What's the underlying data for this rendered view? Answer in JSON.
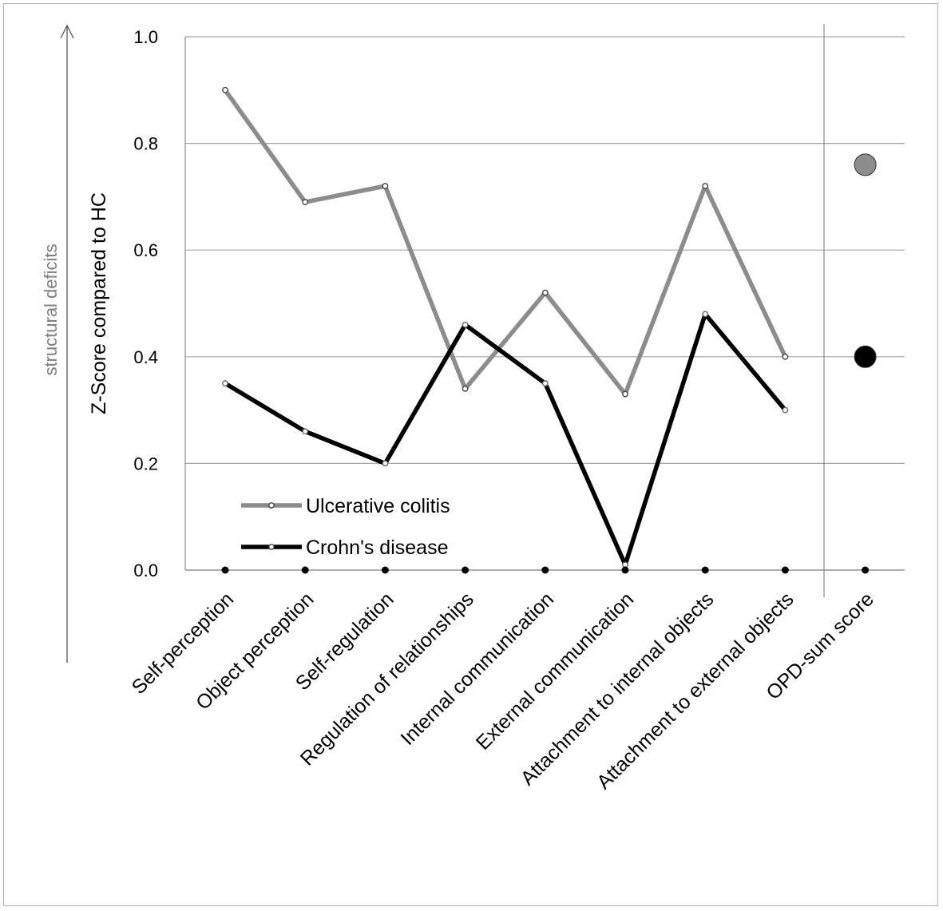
{
  "chart_data": {
    "type": "line",
    "ylabel": "Z-Score compared to  HC",
    "side_label": "structural deficits",
    "ylim": [
      0.0,
      1.0
    ],
    "y_ticks": [
      "0.0",
      "0.2",
      "0.4",
      "0.6",
      "0.8",
      "1.0"
    ],
    "grid": true,
    "legend_position": "lower-left",
    "categories": [
      "Self-perception",
      "Object perception",
      "Self-regulation",
      "Regulation of relationships",
      "Internal communication",
      "External communication",
      "Attachment to internal objects",
      "Attachment to external objects"
    ],
    "series": [
      {
        "name": "Ulcerative colitis",
        "color": "#8c8c8c",
        "values": [
          0.9,
          0.69,
          0.72,
          0.34,
          0.52,
          0.33,
          0.72,
          0.4
        ]
      },
      {
        "name": "Crohn's disease",
        "color": "#000000",
        "values": [
          0.35,
          0.26,
          0.2,
          0.46,
          0.35,
          0.01,
          0.48,
          0.3
        ]
      }
    ],
    "sum_score": {
      "label": "OPD-sum score",
      "points": [
        {
          "series": "Ulcerative colitis",
          "value": 0.76,
          "color": "#8c8c8c"
        },
        {
          "series": "Crohn's disease",
          "value": 0.4,
          "color": "#000000"
        }
      ]
    }
  }
}
